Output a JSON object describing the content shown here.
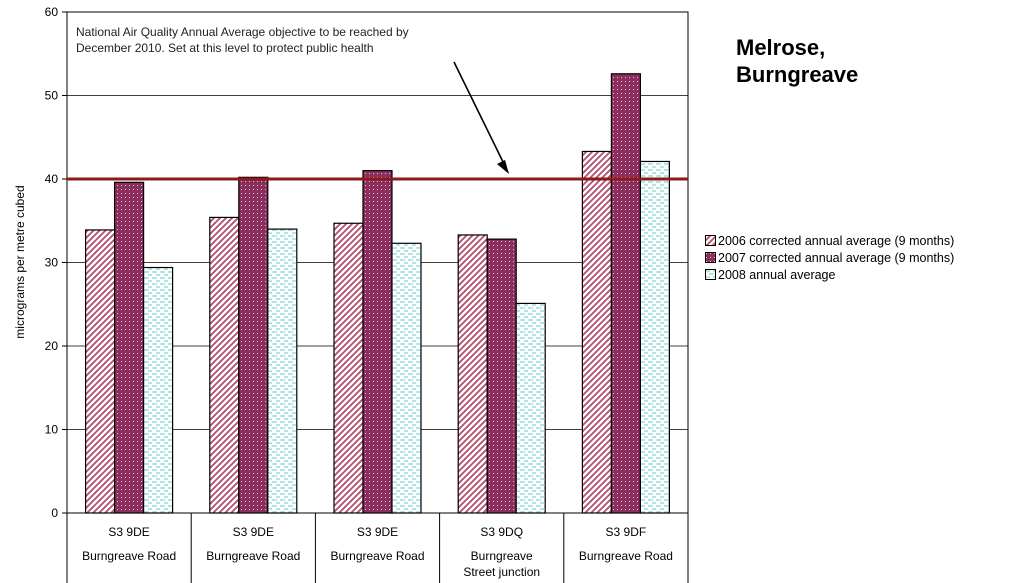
{
  "side_title": {
    "line1": "Melrose,",
    "line2": "Burngreave"
  },
  "chart_data": {
    "type": "bar",
    "ylabel": "micrograms per metre cubed",
    "ylim": [
      0,
      60
    ],
    "yticks": [
      0,
      10,
      20,
      30,
      40,
      50,
      60
    ],
    "grid": true,
    "legend_position": "right",
    "categories": [
      {
        "line1": "S3 9DE",
        "line2": "Burngreave Road",
        "line3": ""
      },
      {
        "line1": "S3 9DE",
        "line2": "Burngreave Road",
        "line3": ""
      },
      {
        "line1": "S3 9DE",
        "line2": "Burngreave Road",
        "line3": ""
      },
      {
        "line1": "S3 9DQ",
        "line2": "Burngreave",
        "line3": "Street junction"
      },
      {
        "line1": "S3 9DF",
        "line2": "Burngreave Road",
        "line3": ""
      }
    ],
    "series": [
      {
        "name": "2006 corrected annual average (9 months)",
        "values": [
          33.9,
          35.4,
          34.7,
          33.3,
          43.3
        ],
        "color": "#b34d6b",
        "pattern": "diagonal"
      },
      {
        "name": "2007 corrected annual average (9 months)",
        "values": [
          39.6,
          40.2,
          41.0,
          32.8,
          52.6
        ],
        "color": "#8c2f5e",
        "pattern": "dotted"
      },
      {
        "name": "2008 annual average",
        "values": [
          29.4,
          34.0,
          32.3,
          25.1,
          42.1
        ],
        "color": "#7fd6d6",
        "pattern": "dashed"
      }
    ],
    "objective": {
      "value": 40,
      "color": "#8b1a1a",
      "annotation_line1": "National Air Quality Annual Average objective to be reached by",
      "annotation_line2": "December 2010. Set at this level to protect public health"
    }
  }
}
